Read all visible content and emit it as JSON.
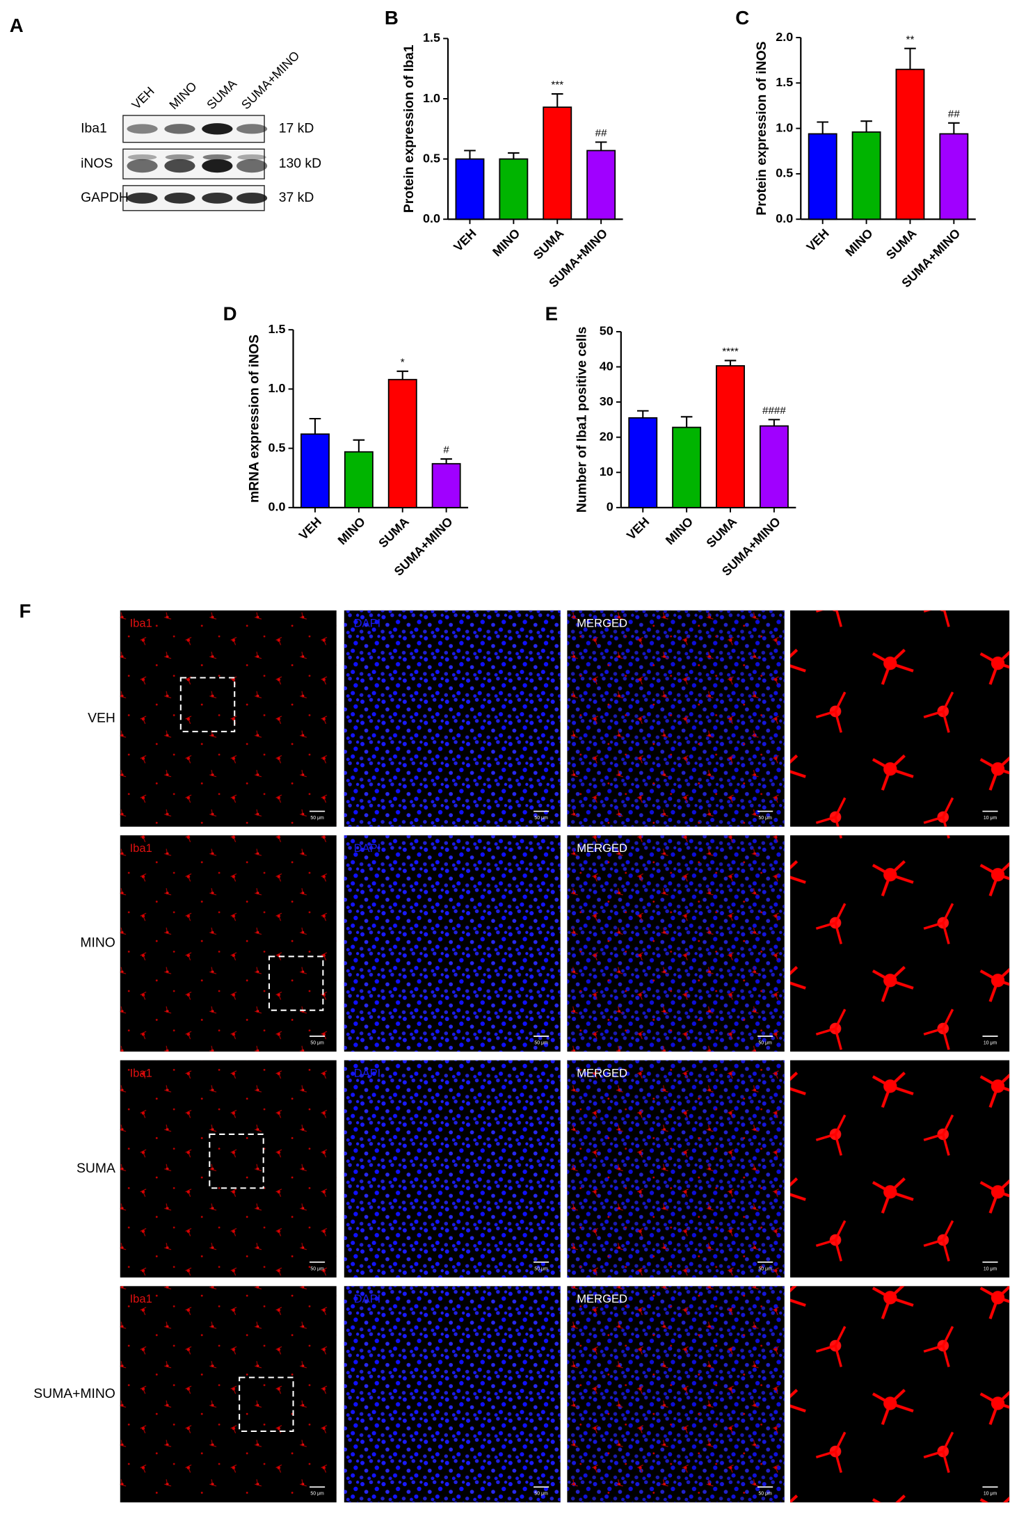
{
  "blot": {
    "label": "A",
    "lanes": [
      "VEH",
      "MINO",
      "SUMA",
      "SUMA+MINO"
    ],
    "rows": [
      {
        "name": "Iba1",
        "size": "17 kD"
      },
      {
        "name": "iNOS",
        "size": "130 kD"
      },
      {
        "name": "GAPDH",
        "size": "37 kD"
      }
    ]
  },
  "chart_data": [
    {
      "type": "bar",
      "label": "B",
      "ylabel": "Protein expression of Iba1",
      "categories": [
        "VEH",
        "MINO",
        "SUMA",
        "SUMA+MINO"
      ],
      "colors": [
        "#0000ff",
        "#00b400",
        "#ff0000",
        "#a000ff"
      ],
      "values": [
        0.5,
        0.5,
        0.93,
        0.57
      ],
      "errors": [
        0.07,
        0.05,
        0.11,
        0.07
      ],
      "annotations": [
        null,
        null,
        "***",
        "##"
      ],
      "ylim": [
        0,
        1.5
      ],
      "yticks": [
        {
          "value": 0,
          "label": "0.0"
        },
        0.5,
        {
          "value": 1,
          "label": "1.0"
        },
        1.5
      ]
    },
    {
      "type": "bar",
      "label": "C",
      "ylabel": "Protein expression of iNOS",
      "categories": [
        "VEH",
        "MINO",
        "SUMA",
        "SUMA+MINO"
      ],
      "colors": [
        "#0000ff",
        "#00b400",
        "#ff0000",
        "#a000ff"
      ],
      "values": [
        0.94,
        0.96,
        1.65,
        0.94
      ],
      "errors": [
        0.13,
        0.12,
        0.23,
        0.12
      ],
      "annotations": [
        null,
        null,
        "**",
        "##"
      ],
      "ylim": [
        0,
        2
      ],
      "yticks": [
        {
          "value": 0,
          "label": "0.0"
        },
        0.5,
        {
          "value": 1,
          "label": "1.0"
        },
        1.5,
        {
          "value": 2,
          "label": "2.0"
        }
      ]
    },
    {
      "type": "bar",
      "label": "D",
      "ylabel": "mRNA expression of iNOS",
      "categories": [
        "VEH",
        "MINO",
        "SUMA",
        "SUMA+MINO"
      ],
      "colors": [
        "#0000ff",
        "#00b400",
        "#ff0000",
        "#a000ff"
      ],
      "values": [
        0.62,
        0.47,
        1.08,
        0.37
      ],
      "errors": [
        0.13,
        0.1,
        0.07,
        0.04
      ],
      "annotations": [
        null,
        null,
        "*",
        "#"
      ],
      "ylim": [
        0,
        1.5
      ],
      "yticks": [
        {
          "value": 0,
          "label": "0.0"
        },
        0.5,
        {
          "value": 1,
          "label": "1.0"
        },
        1.5
      ]
    },
    {
      "type": "bar",
      "label": "E",
      "ylabel": "Number of Iba1 positive cells",
      "categories": [
        "VEH",
        "MINO",
        "SUMA",
        "SUMA+MINO"
      ],
      "colors": [
        "#0000ff",
        "#00b400",
        "#ff0000",
        "#a000ff"
      ],
      "values": [
        25.5,
        22.8,
        40.3,
        23.2
      ],
      "errors": [
        2,
        3,
        1.5,
        1.8
      ],
      "annotations": [
        null,
        null,
        "****",
        "####"
      ],
      "ylim": [
        0,
        50
      ],
      "yticks": [
        0,
        10,
        20,
        30,
        40,
        50
      ]
    }
  ],
  "micrographs": {
    "label": "F",
    "rows": [
      "VEH",
      "MINO",
      "SUMA",
      "SUMA+MINO"
    ],
    "channels": [
      "Iba1",
      "DAPI",
      "MERGED"
    ],
    "scale_bars": [
      "50 μm",
      "10 μm"
    ]
  }
}
